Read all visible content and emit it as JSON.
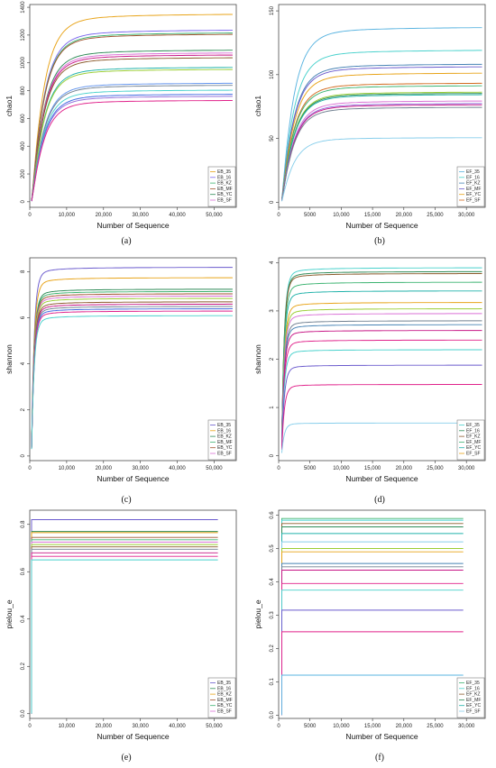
{
  "chart_data": [
    {
      "type": "line",
      "panel_label": "(a)",
      "xlabel": "Number of Sequence",
      "ylabel": "chao1",
      "xlim": [
        0,
        56000
      ],
      "ylim": [
        -40,
        1420
      ],
      "xticks": [
        0,
        10000,
        20000,
        30000,
        40000,
        50000
      ],
      "xtick_labels": [
        "0",
        "10,000",
        "20,000",
        "30,000",
        "40,000",
        "50,000"
      ],
      "yticks": [
        0,
        200,
        400,
        600,
        800,
        1000,
        1200,
        1400
      ],
      "ytick_labels": [
        "0",
        "200",
        "400",
        "600",
        "800",
        "1000",
        "1200",
        "1400"
      ],
      "x_end": 55000,
      "curve": "rarefaction",
      "legend": [
        "EB_35",
        "EB_16",
        "EB_KZ",
        "EB_MF",
        "EB_YC",
        "EB_SF"
      ],
      "legend_position": "bottom-right",
      "series": [
        {
          "asymptote": 1360,
          "color": "#e8a317"
        },
        {
          "asymptote": 1245,
          "color": "#7b68ee"
        },
        {
          "asymptote": 1225,
          "color": "#3cb371"
        },
        {
          "asymptote": 1215,
          "color": "#a0522d"
        },
        {
          "asymptote": 1100,
          "color": "#2e8b57"
        },
        {
          "asymptote": 1080,
          "color": "#da70d6"
        },
        {
          "asymptote": 1065,
          "color": "#c71585"
        },
        {
          "asymptote": 1045,
          "color": "#8b5a2b"
        },
        {
          "asymptote": 975,
          "color": "#20b2aa"
        },
        {
          "asymptote": 960,
          "color": "#9acd32"
        },
        {
          "asymptote": 860,
          "color": "#6495ed"
        },
        {
          "asymptote": 845,
          "color": "#708090"
        },
        {
          "asymptote": 810,
          "color": "#48d1cc"
        },
        {
          "asymptote": 780,
          "color": "#4169e1"
        },
        {
          "asymptote": 765,
          "color": "#9370db"
        },
        {
          "asymptote": 735,
          "color": "#e0218a"
        }
      ]
    },
    {
      "type": "line",
      "panel_label": "(b)",
      "xlabel": "Number of Sequence",
      "ylabel": "chao1",
      "xlim": [
        0,
        33000
      ],
      "ylim": [
        -4,
        155
      ],
      "xticks": [
        0,
        5000,
        10000,
        15000,
        20000,
        25000,
        30000
      ],
      "xtick_labels": [
        "0",
        "5000",
        "10,000",
        "15,000",
        "20,000",
        "25,000",
        "30,000"
      ],
      "yticks": [
        0,
        50,
        100,
        150
      ],
      "ytick_labels": [
        "0",
        "50",
        "100",
        "150"
      ],
      "x_end": 32500,
      "curve": "rarefaction",
      "legend": [
        "EF_35",
        "EF_16",
        "EF_KZ",
        "EF_MF",
        "EF_YC",
        "EF_SF"
      ],
      "legend_position": "bottom-right",
      "series": [
        {
          "asymptote": 138,
          "color": "#5ab4e0"
        },
        {
          "asymptote": 120,
          "color": "#48d1cc"
        },
        {
          "asymptote": 109,
          "color": "#4682b4"
        },
        {
          "asymptote": 107,
          "color": "#6a5acd"
        },
        {
          "asymptote": 102,
          "color": "#e8a317"
        },
        {
          "asymptote": 94,
          "color": "#d2691e"
        },
        {
          "asymptote": 92,
          "color": "#3cb371"
        },
        {
          "asymptote": 87,
          "color": "#9acd32"
        },
        {
          "asymptote": 86,
          "color": "#2e8b57"
        },
        {
          "asymptote": 85,
          "color": "#20b2aa"
        },
        {
          "asymptote": 80,
          "color": "#da70d6"
        },
        {
          "asymptote": 78,
          "color": "#9370db"
        },
        {
          "asymptote": 77,
          "color": "#c71585"
        },
        {
          "asymptote": 75,
          "color": "#708090"
        },
        {
          "asymptote": 51,
          "color": "#87ceeb"
        }
      ]
    },
    {
      "type": "line",
      "panel_label": "(c)",
      "xlabel": "Number of Sequence",
      "ylabel": "shannon",
      "xlim": [
        0,
        56000
      ],
      "ylim": [
        -0.2,
        8.6
      ],
      "xticks": [
        0,
        10000,
        20000,
        30000,
        40000,
        50000
      ],
      "xtick_labels": [
        "0",
        "10,000",
        "20,000",
        "30,000",
        "40,000",
        "50,000"
      ],
      "yticks": [
        0,
        2,
        4,
        6,
        8
      ],
      "ytick_labels": [
        "0",
        "2",
        "4",
        "6",
        "8"
      ],
      "x_end": 55000,
      "curve": "shannon",
      "legend": [
        "EB_35",
        "EB_16",
        "EB_KZ",
        "EB_MF",
        "EB_YC",
        "EB_SF"
      ],
      "legend_position": "bottom-right",
      "series": [
        {
          "asymptote": 8.2,
          "color": "#6a5acd"
        },
        {
          "asymptote": 7.75,
          "color": "#e8a317"
        },
        {
          "asymptote": 7.25,
          "color": "#2e8b57"
        },
        {
          "asymptote": 7.15,
          "color": "#3cb371"
        },
        {
          "asymptote": 7.05,
          "color": "#a0522d"
        },
        {
          "asymptote": 6.95,
          "color": "#da70d6"
        },
        {
          "asymptote": 6.85,
          "color": "#9acd32"
        },
        {
          "asymptote": 6.7,
          "color": "#8b5a2b"
        },
        {
          "asymptote": 6.6,
          "color": "#c71585"
        },
        {
          "asymptote": 6.5,
          "color": "#708090"
        },
        {
          "asymptote": 6.4,
          "color": "#4169e1"
        },
        {
          "asymptote": 6.3,
          "color": "#e0218a"
        },
        {
          "asymptote": 6.1,
          "color": "#48d1cc"
        }
      ]
    },
    {
      "type": "line",
      "panel_label": "(d)",
      "xlabel": "Number of Sequence",
      "ylabel": "shannon",
      "xlim": [
        0,
        33000
      ],
      "ylim": [
        -0.1,
        4.1
      ],
      "xticks": [
        0,
        5000,
        10000,
        15000,
        20000,
        25000,
        30000
      ],
      "xtick_labels": [
        "0",
        "5000",
        "10,000",
        "15,000",
        "20,000",
        "25,000",
        "30,000"
      ],
      "yticks": [
        0,
        1,
        2,
        3,
        4
      ],
      "ytick_labels": [
        "0",
        "1",
        "2",
        "3",
        "4"
      ],
      "x_end": 32500,
      "curve": "shannon",
      "legend": [
        "EF_35",
        "EF_16",
        "EF_KZ",
        "EF_MF",
        "EF_YC",
        "EF_SF"
      ],
      "legend_position": "bottom-right",
      "series": [
        {
          "asymptote": 3.9,
          "color": "#48d1cc"
        },
        {
          "asymptote": 3.82,
          "color": "#2e8b57"
        },
        {
          "asymptote": 3.78,
          "color": "#8b5a2b"
        },
        {
          "asymptote": 3.6,
          "color": "#3cb371"
        },
        {
          "asymptote": 3.42,
          "color": "#20b2aa"
        },
        {
          "asymptote": 3.18,
          "color": "#e8a317"
        },
        {
          "asymptote": 3.05,
          "color": "#9acd32"
        },
        {
          "asymptote": 2.95,
          "color": "#da70d6"
        },
        {
          "asymptote": 2.8,
          "color": "#708090"
        },
        {
          "asymptote": 2.72,
          "color": "#4682b4"
        },
        {
          "asymptote": 2.6,
          "color": "#c71585"
        },
        {
          "asymptote": 2.4,
          "color": "#e0218a"
        },
        {
          "asymptote": 2.2,
          "color": "#48d1cc"
        },
        {
          "asymptote": 1.88,
          "color": "#6a5acd"
        },
        {
          "asymptote": 1.48,
          "color": "#e0218a"
        },
        {
          "asymptote": 0.68,
          "color": "#87ceeb"
        }
      ]
    },
    {
      "type": "line",
      "panel_label": "(e)",
      "xlabel": "Number of Sequence",
      "ylabel": "pielou_e",
      "xlim": [
        0,
        56000
      ],
      "ylim": [
        -0.02,
        0.86
      ],
      "xticks": [
        0,
        10000,
        20000,
        30000,
        40000,
        50000
      ],
      "xtick_labels": [
        "0",
        "10,000",
        "20,000",
        "30,000",
        "40,000",
        "50,000"
      ],
      "yticks": [
        0,
        0.2,
        0.4,
        0.6,
        0.8
      ],
      "ytick_labels": [
        "0.0",
        "0.2",
        "0.4",
        "0.6",
        "0.8"
      ],
      "x_end": 51000,
      "curve": "flat",
      "legend": [
        "EB_35",
        "EB_16",
        "EB_KZ",
        "EB_MF",
        "EB_YC",
        "EB_SF"
      ],
      "legend_position": "bottom-right",
      "series": [
        {
          "asymptote": 0.82,
          "color": "#6a5acd"
        },
        {
          "asymptote": 0.77,
          "color": "#2e8b57"
        },
        {
          "asymptote": 0.765,
          "color": "#e8a317"
        },
        {
          "asymptote": 0.745,
          "color": "#a0522d"
        },
        {
          "asymptote": 0.735,
          "color": "#3cb371"
        },
        {
          "asymptote": 0.725,
          "color": "#da70d6"
        },
        {
          "asymptote": 0.715,
          "color": "#9acd32"
        },
        {
          "asymptote": 0.705,
          "color": "#8b5a2b"
        },
        {
          "asymptote": 0.695,
          "color": "#708090"
        },
        {
          "asymptote": 0.68,
          "color": "#c71585"
        },
        {
          "asymptote": 0.665,
          "color": "#e0218a"
        },
        {
          "asymptote": 0.65,
          "color": "#48d1cc"
        }
      ]
    },
    {
      "type": "line",
      "panel_label": "(f)",
      "xlabel": "Number of Sequence",
      "ylabel": "pielou_e",
      "xlim": [
        0,
        33000
      ],
      "ylim": [
        -0.01,
        0.615
      ],
      "xticks": [
        0,
        5000,
        10000,
        15000,
        20000,
        25000,
        30000
      ],
      "xtick_labels": [
        "0",
        "5000",
        "10,000",
        "15,000",
        "20,000",
        "25,000",
        "30,000"
      ],
      "yticks": [
        0,
        0.1,
        0.2,
        0.3,
        0.4,
        0.5,
        0.6
      ],
      "ytick_labels": [
        "0.0",
        "0.1",
        "0.2",
        "0.3",
        "0.4",
        "0.5",
        "0.6"
      ],
      "x_end": 29500,
      "curve": "flat",
      "legend": [
        "EF_35",
        "EF_16",
        "EF_KZ",
        "EF_MF",
        "EF_YC",
        "EF_SF"
      ],
      "legend_position": "bottom-right",
      "series": [
        {
          "asymptote": 0.59,
          "color": "#3cb371"
        },
        {
          "asymptote": 0.585,
          "color": "#48d1cc"
        },
        {
          "asymptote": 0.575,
          "color": "#8b5a2b"
        },
        {
          "asymptote": 0.565,
          "color": "#2e8b57"
        },
        {
          "asymptote": 0.545,
          "color": "#20b2aa"
        },
        {
          "asymptote": 0.52,
          "color": "#87ceeb"
        },
        {
          "asymptote": 0.5,
          "color": "#9acd32"
        },
        {
          "asymptote": 0.49,
          "color": "#e8a317"
        },
        {
          "asymptote": 0.455,
          "color": "#4682b4"
        },
        {
          "asymptote": 0.445,
          "color": "#708090"
        },
        {
          "asymptote": 0.435,
          "color": "#c71585"
        },
        {
          "asymptote": 0.395,
          "color": "#e0218a"
        },
        {
          "asymptote": 0.375,
          "color": "#48d1cc"
        },
        {
          "asymptote": 0.315,
          "color": "#6a5acd"
        },
        {
          "asymptote": 0.25,
          "color": "#e0218a"
        },
        {
          "asymptote": 0.12,
          "color": "#5ab4e0"
        }
      ]
    }
  ]
}
